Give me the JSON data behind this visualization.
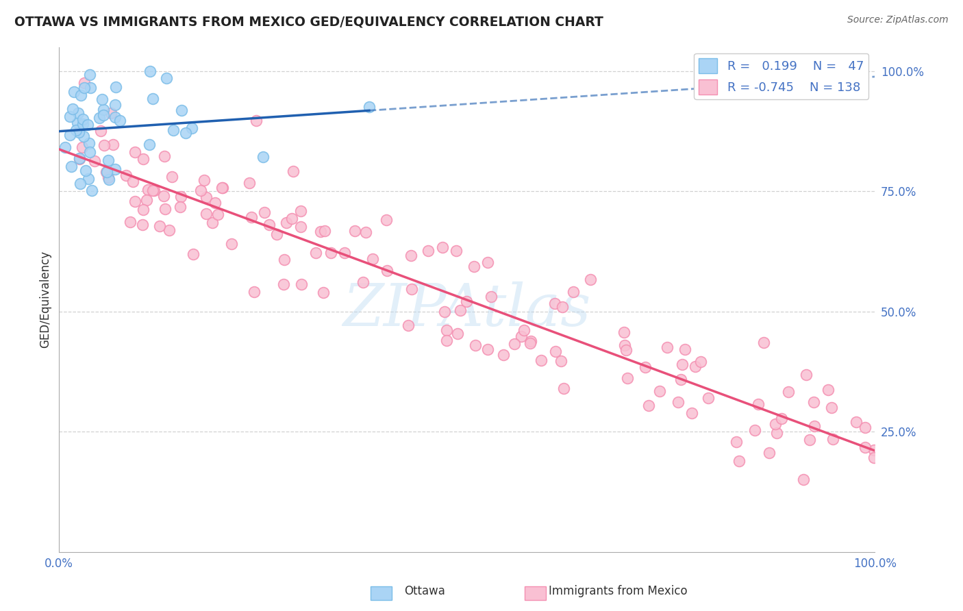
{
  "title": "OTTAWA VS IMMIGRANTS FROM MEXICO GED/EQUIVALENCY CORRELATION CHART",
  "source": "Source: ZipAtlas.com",
  "ylabel": "GED/Equivalency",
  "xlim": [
    0.0,
    1.0
  ],
  "ylim": [
    0.0,
    1.05
  ],
  "y_ticks_right": [
    0.25,
    0.5,
    0.75,
    1.0
  ],
  "y_tick_labels_right": [
    "25.0%",
    "50.0%",
    "75.0%",
    "100.0%"
  ],
  "ottawa_color": "#7bbde8",
  "ottawa_face_color": "#aad4f5",
  "mexico_color": "#f48fb1",
  "mexico_face_color": "#f9c0d3",
  "ottawa_line_color": "#2060b0",
  "mexico_line_color": "#e8507a",
  "r_ottawa": 0.199,
  "n_ottawa": 47,
  "r_mexico": -0.745,
  "n_mexico": 138,
  "legend_label_ottawa": "Ottawa",
  "legend_label_mexico": "Immigrants from Mexico",
  "watermark": "ZIPAtlas",
  "background_color": "#ffffff",
  "grid_color": "#cccccc",
  "title_color": "#222222",
  "source_color": "#666666",
  "tick_color": "#4472c4",
  "axis_color": "#aaaaaa"
}
